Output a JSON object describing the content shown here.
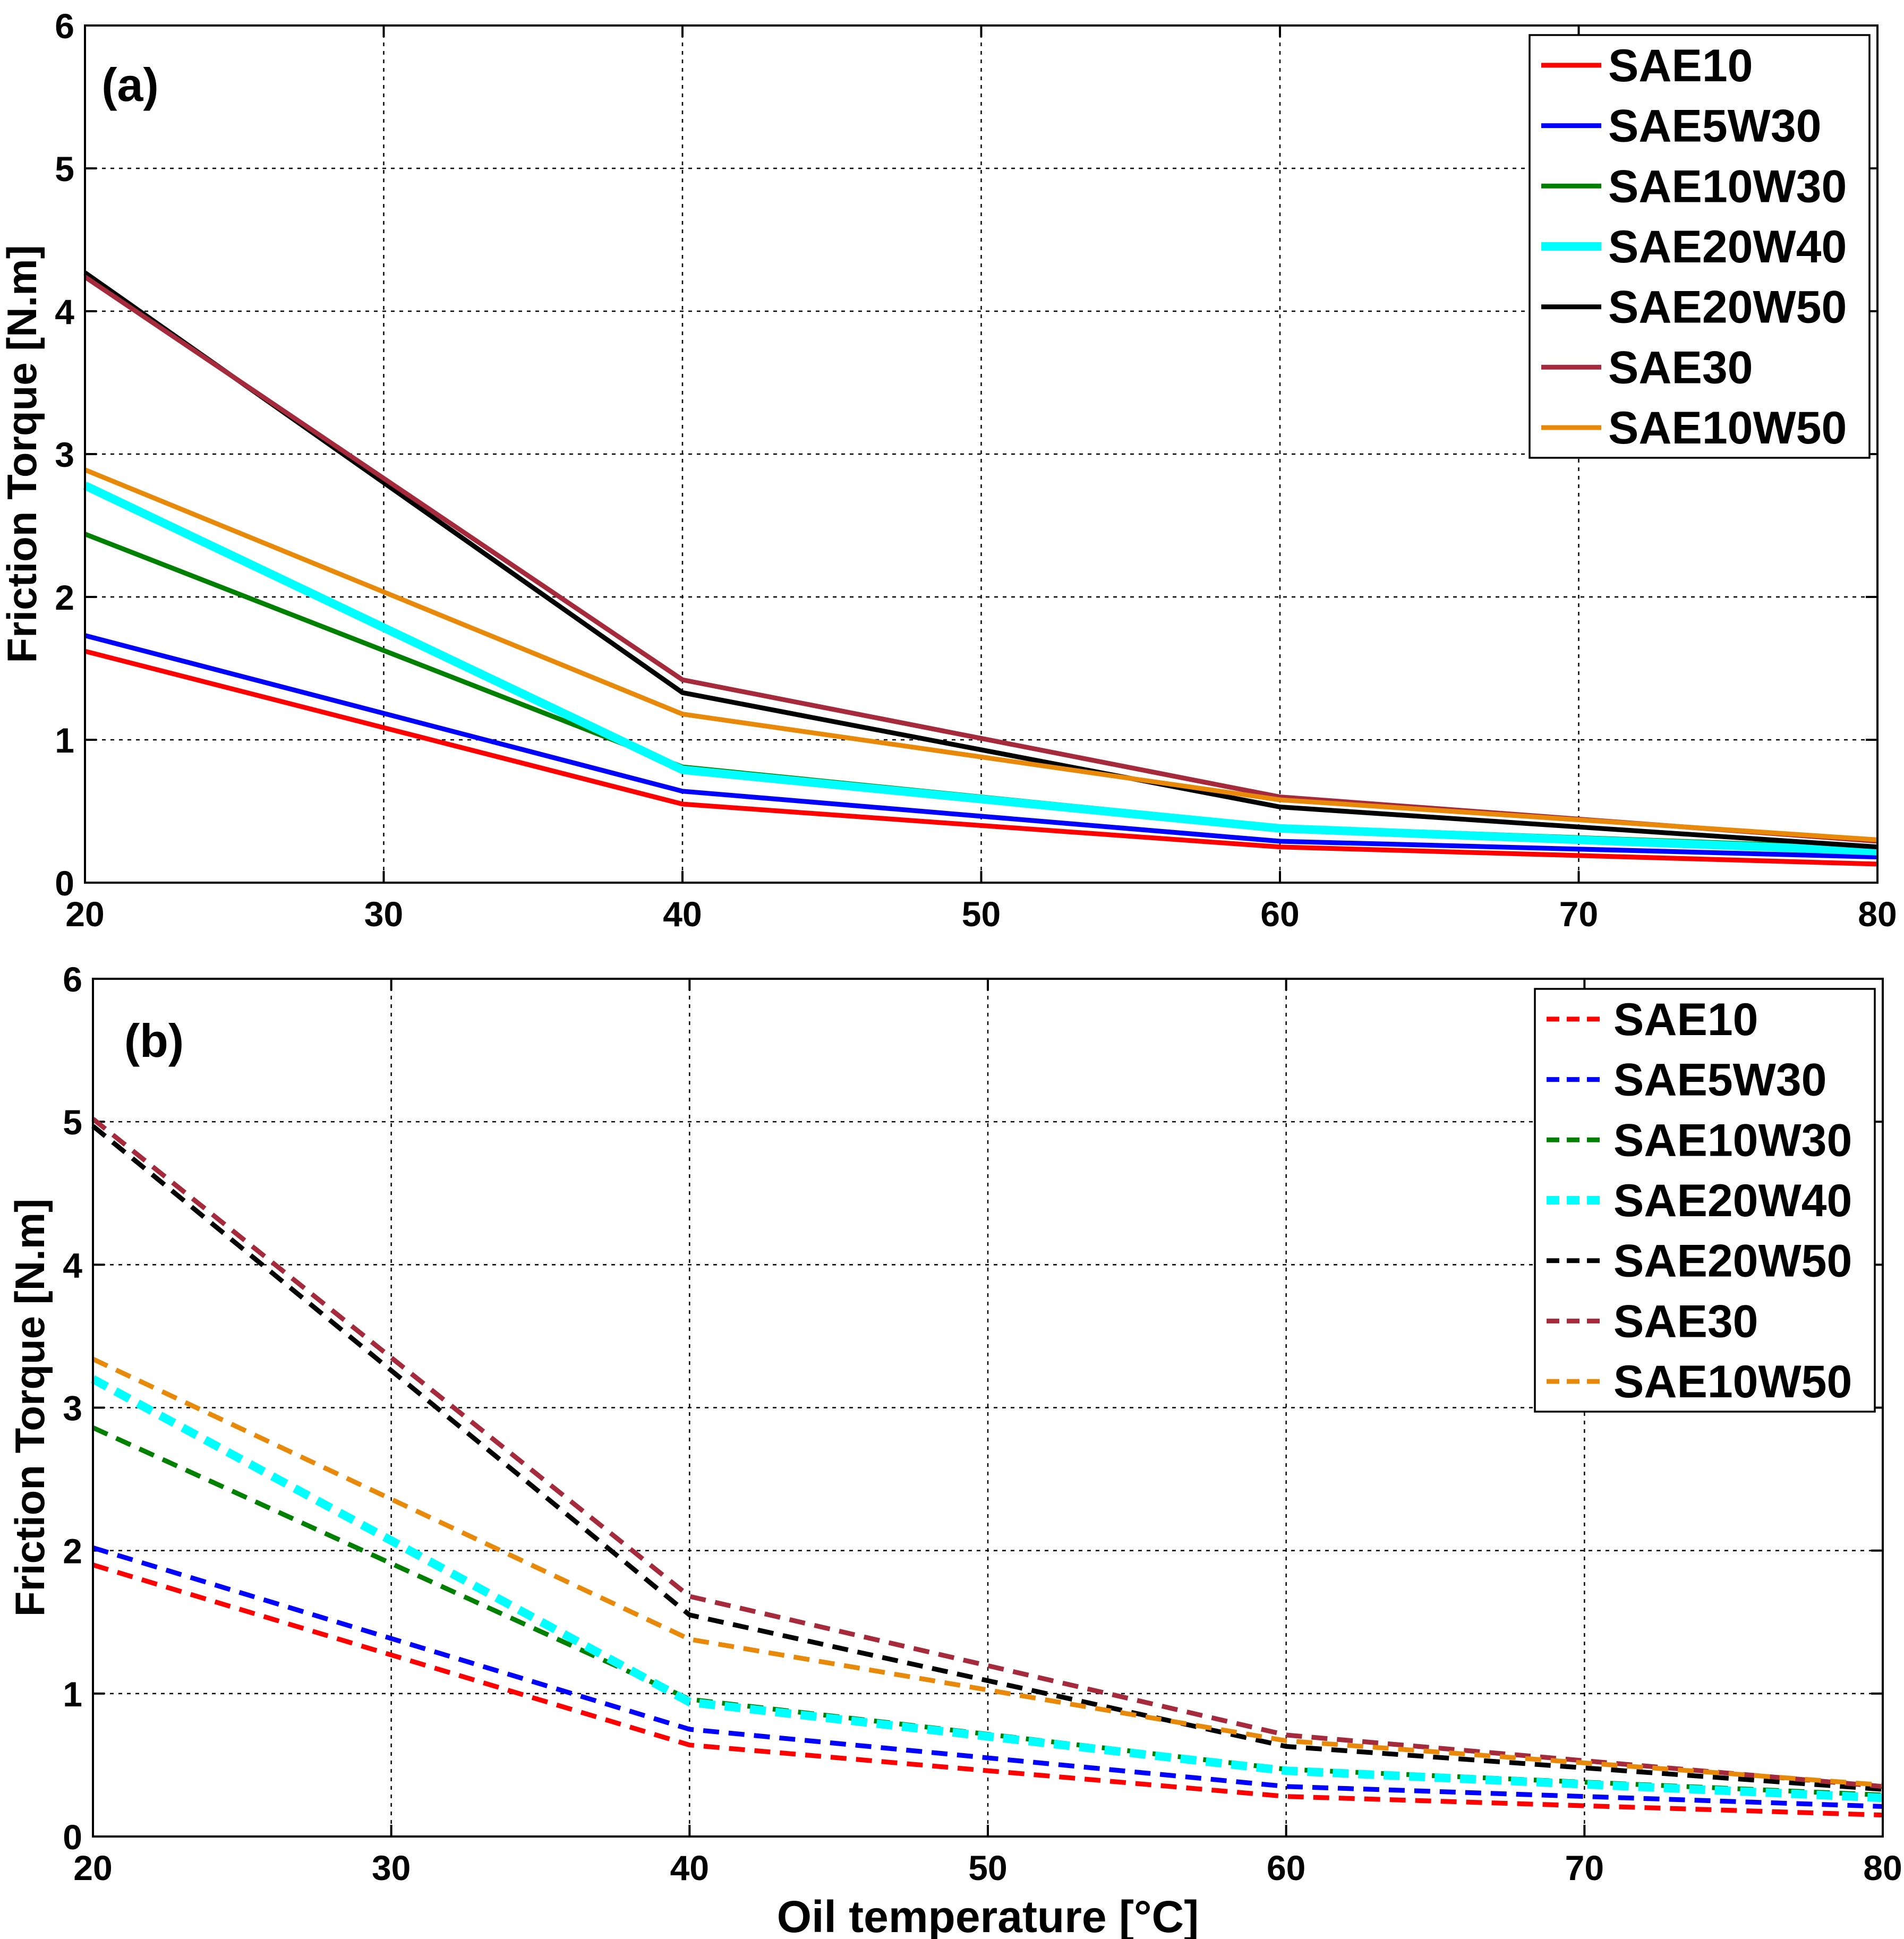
{
  "chart_data": [
    {
      "type": "line",
      "panel_label": "(a)",
      "ylabel": "Friction Torque [N.m]",
      "xlabel": "",
      "xlim": [
        20,
        80
      ],
      "ylim": [
        0,
        6
      ],
      "xticks": [
        20,
        30,
        40,
        50,
        60,
        70,
        80
      ],
      "yticks": [
        0,
        1,
        2,
        3,
        4,
        5,
        6
      ],
      "grid": true,
      "legend_position": "top-right",
      "line_style": "solid",
      "x": [
        20,
        40,
        60,
        80
      ],
      "series": [
        {
          "name": "SAE10",
          "color": "#ff0000",
          "values": [
            1.62,
            0.55,
            0.25,
            0.13
          ]
        },
        {
          "name": "SAE5W30",
          "color": "#0000ff",
          "values": [
            1.73,
            0.64,
            0.29,
            0.18
          ]
        },
        {
          "name": "SAE10W30",
          "color": "#008000",
          "values": [
            2.44,
            0.81,
            0.39,
            0.24
          ]
        },
        {
          "name": "SAE20W40",
          "color": "#00ffff",
          "values": [
            2.78,
            0.79,
            0.38,
            0.22
          ]
        },
        {
          "name": "SAE20W50",
          "color": "#000000",
          "values": [
            4.27,
            1.33,
            0.53,
            0.25
          ]
        },
        {
          "name": "SAE30",
          "color": "#a52a3c",
          "values": [
            4.24,
            1.42,
            0.6,
            0.29
          ]
        },
        {
          "name": "SAE10W50",
          "color": "#e8890a",
          "values": [
            2.89,
            1.18,
            0.58,
            0.3
          ]
        }
      ]
    },
    {
      "type": "line",
      "panel_label": "(b)",
      "ylabel": "Friction Torque [N.m]",
      "xlabel": "Oil temperature [°C]",
      "xlim": [
        20,
        80
      ],
      "ylim": [
        0,
        6
      ],
      "xticks": [
        20,
        30,
        40,
        50,
        60,
        70,
        80
      ],
      "yticks": [
        0,
        1,
        2,
        3,
        4,
        5,
        6
      ],
      "grid": true,
      "legend_position": "top-right",
      "line_style": "dashed",
      "x": [
        20,
        40,
        60,
        80
      ],
      "series": [
        {
          "name": "SAE10",
          "color": "#ff0000",
          "values": [
            1.9,
            0.64,
            0.28,
            0.15
          ]
        },
        {
          "name": "SAE5W30",
          "color": "#0000ff",
          "values": [
            2.02,
            0.75,
            0.35,
            0.21
          ]
        },
        {
          "name": "SAE10W30",
          "color": "#008000",
          "values": [
            2.86,
            0.96,
            0.47,
            0.29
          ]
        },
        {
          "name": "SAE20W40",
          "color": "#00ffff",
          "values": [
            3.2,
            0.94,
            0.46,
            0.27
          ]
        },
        {
          "name": "SAE20W50",
          "color": "#000000",
          "values": [
            4.97,
            1.55,
            0.63,
            0.33
          ]
        },
        {
          "name": "SAE30",
          "color": "#a52a3c",
          "values": [
            5.02,
            1.68,
            0.71,
            0.35
          ]
        },
        {
          "name": "SAE10W50",
          "color": "#e8890a",
          "values": [
            3.34,
            1.38,
            0.67,
            0.36
          ]
        }
      ]
    }
  ]
}
